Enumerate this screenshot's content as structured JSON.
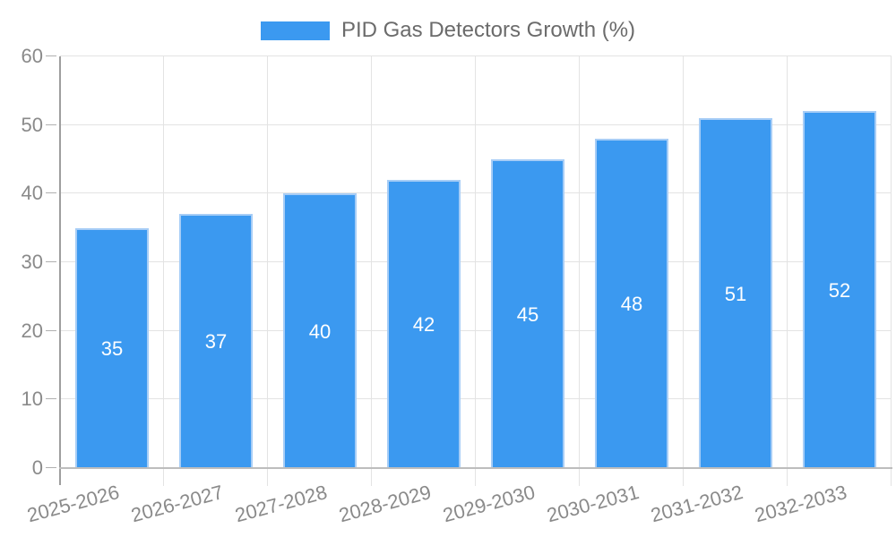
{
  "legend": {
    "position": "top-center"
  },
  "chart_data": {
    "type": "bar",
    "title": "",
    "xlabel": "",
    "ylabel": "",
    "categories": [
      "2025-2026",
      "2026-2027",
      "2027-2028",
      "2028-2029",
      "2029-2030",
      "2030-2031",
      "2031-2032",
      "2032-2033"
    ],
    "series": [
      {
        "name": "PID Gas Detectors Growth (%)",
        "values": [
          35,
          37,
          40,
          42,
          45,
          48,
          51,
          52
        ]
      }
    ],
    "bar_value_labels_visible": true,
    "ylim": [
      0,
      60
    ],
    "ytick_step": 10,
    "yticks": [
      0,
      10,
      20,
      30,
      40,
      50,
      60
    ],
    "grid": true,
    "legend_position": "top-center",
    "colors": {
      "bar_fill": "#3B99F0",
      "bar_border": "#A7CDF6",
      "bar_label_text": "#FFFFFF",
      "axis_text": "#8A8A8A",
      "legend_text": "#6B6B6B",
      "grid_line": "#E3E3E3",
      "y_axis_line": "#9E9E9E",
      "x_axis_line": "#BDBDBD",
      "tick_mark": "#B0B0B0"
    }
  }
}
